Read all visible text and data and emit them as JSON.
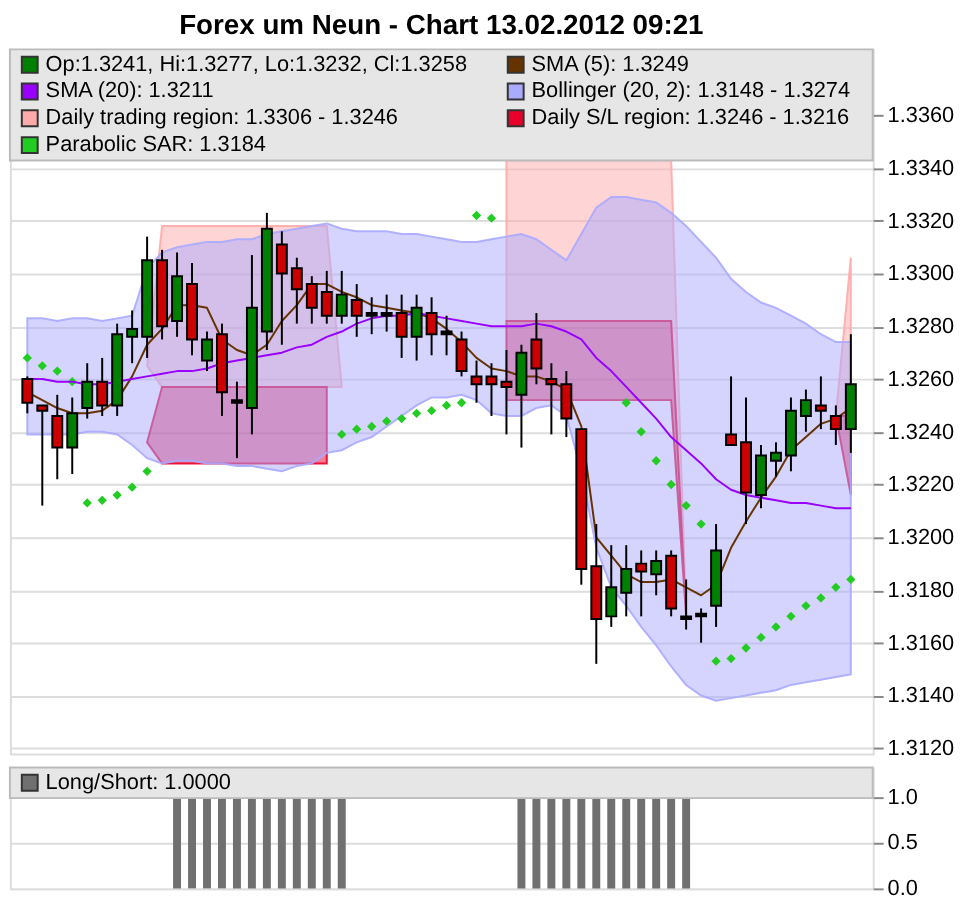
{
  "chart_data": [
    {
      "type": "candlestick",
      "title": "Forex um Neun - Chart 13.02.2012 09:21",
      "categories": [
        null,
        null,
        null,
        null,
        null,
        null,
        null,
        null,
        null,
        null,
        null,
        null,
        null,
        null,
        null,
        null,
        null,
        null,
        null,
        null,
        null,
        null,
        null,
        null,
        null,
        null,
        null,
        null,
        null,
        null,
        null,
        null,
        null,
        null,
        null,
        null,
        null,
        null,
        null,
        null,
        null,
        null,
        null,
        null,
        null,
        null,
        null,
        null,
        null,
        null,
        null,
        null,
        null,
        null,
        null,
        null
      ],
      "series": [
        {
          "name": "Op:1.3241, Hi:1.3277, Lo:1.3232, Cl:1.3258",
          "type": "candlestick",
          "color": "#008000",
          "ohlc": [
            [
              1.326,
              1.3261,
              1.3247,
              1.3251
            ],
            [
              1.325,
              1.325,
              1.3212,
              1.3248
            ],
            [
              1.3246,
              1.3254,
              1.3222,
              1.3234
            ],
            [
              1.3234,
              1.3253,
              1.3224,
              1.3247
            ],
            [
              1.3249,
              1.3266,
              1.3245,
              1.3259
            ],
            [
              1.3259,
              1.3268,
              1.3246,
              1.325
            ],
            [
              1.325,
              1.3281,
              1.3246,
              1.3277
            ],
            [
              1.3276,
              1.3286,
              1.3266,
              1.3279
            ],
            [
              1.3276,
              1.3314,
              1.3268,
              1.3305
            ],
            [
              1.3305,
              1.3309,
              1.3275,
              1.328
            ],
            [
              1.3282,
              1.3308,
              1.3276,
              1.3299
            ],
            [
              1.3296,
              1.3304,
              1.3269,
              1.3275
            ],
            [
              1.3267,
              1.3278,
              1.3263,
              1.3275
            ],
            [
              1.3277,
              1.3281,
              1.3246,
              1.3255
            ],
            [
              1.3252,
              1.3259,
              1.323,
              1.3251
            ],
            [
              1.3249,
              1.3307,
              1.3239,
              1.3287
            ],
            [
              1.3278,
              1.3323,
              1.3271,
              1.3317
            ],
            [
              1.3311,
              1.3316,
              1.3273,
              1.33
            ],
            [
              1.3302,
              1.3306,
              1.3281,
              1.3294
            ],
            [
              1.3296,
              1.3299,
              1.3281,
              1.3287
            ],
            [
              1.3293,
              1.3301,
              1.3281,
              1.3284
            ],
            [
              1.3284,
              1.3301,
              1.3281,
              1.3292
            ],
            [
              1.329,
              1.3296,
              1.3276,
              1.3284
            ],
            [
              1.3285,
              1.3291,
              1.3277,
              1.3284
            ],
            [
              1.3285,
              1.3292,
              1.3278,
              1.3284
            ],
            [
              1.3285,
              1.3292,
              1.3268,
              1.3276
            ],
            [
              1.3276,
              1.3292,
              1.3267,
              1.3287
            ],
            [
              1.3285,
              1.3291,
              1.3269,
              1.3277
            ],
            [
              1.3278,
              1.3284,
              1.3269,
              1.3277
            ],
            [
              1.3275,
              1.3278,
              1.3261,
              1.3263
            ],
            [
              1.3261,
              1.3267,
              1.3251,
              1.3258
            ],
            [
              1.3261,
              1.3266,
              1.3246,
              1.3258
            ],
            [
              1.3259,
              1.3271,
              1.3239,
              1.3257
            ],
            [
              1.3254,
              1.3273,
              1.3234,
              1.327
            ],
            [
              1.3275,
              1.3285,
              1.3258,
              1.3264
            ],
            [
              1.326,
              1.3266,
              1.3239,
              1.3258
            ],
            [
              1.3258,
              1.3263,
              1.3238,
              1.3245
            ],
            [
              1.3241,
              1.3241,
              1.3182,
              1.3188
            ],
            [
              1.3189,
              1.3205,
              1.3152,
              1.3169
            ],
            [
              1.317,
              1.3197,
              1.3166,
              1.3181
            ],
            [
              1.3179,
              1.3197,
              1.317,
              1.3188
            ],
            [
              1.319,
              1.3195,
              1.317,
              1.3187
            ],
            [
              1.3186,
              1.3195,
              1.3178,
              1.3191
            ],
            [
              1.3193,
              1.3195,
              1.317,
              1.3173
            ],
            [
              1.317,
              1.3184,
              1.3165,
              1.3169
            ],
            [
              1.3171,
              1.3173,
              1.316,
              1.317
            ],
            [
              1.3174,
              1.3205,
              1.3166,
              1.3195
            ],
            [
              1.3239,
              1.3261,
              1.3235,
              1.3235
            ],
            [
              1.3236,
              1.3253,
              1.3205,
              1.3217
            ],
            [
              1.3216,
              1.3235,
              1.3211,
              1.3231
            ],
            [
              1.3229,
              1.3236,
              1.3223,
              1.3232
            ],
            [
              1.3231,
              1.3253,
              1.3225,
              1.3248
            ],
            [
              1.3246,
              1.3256,
              1.324,
              1.3252
            ],
            [
              1.325,
              1.3261,
              1.3241,
              1.3248
            ],
            [
              1.3246,
              1.325,
              1.3235,
              1.3241
            ],
            [
              1.3241,
              1.3277,
              1.3232,
              1.3258
            ]
          ],
          "colors": [
            "#cc0000",
            "#cc0000",
            "#cc0000",
            "#008000",
            "#008000",
            "#cc0000",
            "#008000",
            "#008000",
            "#008000",
            "#cc0000",
            "#008000",
            "#cc0000",
            "#008000",
            "#cc0000",
            "#000000",
            "#008000",
            "#008000",
            "#cc0000",
            "#cc0000",
            "#cc0000",
            "#cc0000",
            "#008000",
            "#cc0000",
            "#000000",
            "#000000",
            "#cc0000",
            "#008000",
            "#cc0000",
            "#000000",
            "#cc0000",
            "#cc0000",
            "#cc0000",
            "#cc0000",
            "#008000",
            "#cc0000",
            "#cc0000",
            "#cc0000",
            "#cc0000",
            "#cc0000",
            "#008000",
            "#008000",
            "#cc0000",
            "#008000",
            "#cc0000",
            "#000000",
            "#000000",
            "#008000",
            "#cc0000",
            "#cc0000",
            "#008000",
            "#008000",
            "#008000",
            "#008000",
            "#cc0000",
            "#cc0000",
            "#008000"
          ]
        },
        {
          "name": "SMA (5): 1.3249",
          "type": "line",
          "color": "#663300",
          "values": [
            1.3255,
            1.3252,
            1.3249,
            1.3247,
            1.3247,
            1.3248,
            1.3252,
            1.3261,
            1.3273,
            1.3279,
            1.3288,
            1.3288,
            1.3287,
            1.3275,
            1.3271,
            1.3269,
            1.3273,
            1.3282,
            1.3288,
            1.3296,
            1.3296,
            1.3293,
            1.3291,
            1.3288,
            1.3287,
            1.3286,
            1.3285,
            1.3283,
            1.3279,
            1.3274,
            1.3268,
            1.3264,
            1.3263,
            1.3261,
            1.3261,
            1.3259,
            1.3256,
            1.3242,
            1.32,
            1.3193,
            1.3186,
            1.3183,
            1.3183,
            1.3184,
            1.3181,
            1.3178,
            1.3182,
            1.3196,
            1.3206,
            1.3215,
            1.3223,
            1.3233,
            1.3238,
            1.3243,
            1.3245,
            1.3249
          ]
        },
        {
          "name": "SMA (20): 1.3211",
          "type": "line",
          "color": "#9900ff",
          "values": [
            1.326,
            1.326,
            1.3259,
            1.3259,
            1.3258,
            1.3258,
            1.3259,
            1.326,
            1.3261,
            1.3262,
            1.3263,
            1.3263,
            1.3264,
            1.3266,
            1.3267,
            1.3268,
            1.3269,
            1.327,
            1.3272,
            1.3273,
            1.3276,
            1.3278,
            1.3281,
            1.3283,
            1.3284,
            1.3284,
            1.3285,
            1.3284,
            1.3283,
            1.3282,
            1.3281,
            1.328,
            1.328,
            1.328,
            1.3281,
            1.328,
            1.3278,
            1.3275,
            1.3268,
            1.3263,
            1.3257,
            1.3251,
            1.3245,
            1.3238,
            1.3233,
            1.3228,
            1.3222,
            1.3218,
            1.3216,
            1.3215,
            1.3214,
            1.3213,
            1.3213,
            1.3212,
            1.3211,
            1.3211
          ]
        },
        {
          "name": "Bollinger (20, 2): 1.3148 - 1.3274",
          "type": "area",
          "color": "#aaaaff",
          "values": [
            null,
            null,
            null,
            null,
            null,
            null,
            null,
            null,
            null,
            null,
            null,
            null,
            null,
            null,
            null,
            null,
            null,
            null,
            null,
            null,
            null,
            null,
            null,
            null,
            null,
            null,
            null,
            null,
            null,
            null,
            null,
            null,
            null,
            null,
            null,
            null,
            null,
            null,
            null,
            null,
            null,
            null,
            null,
            null,
            null,
            null,
            null,
            null,
            null,
            null,
            null,
            null,
            null,
            null,
            null,
            null
          ],
          "upper": [
            1.3283,
            1.3283,
            1.3282,
            1.3283,
            1.3283,
            1.3282,
            1.3283,
            1.3284,
            1.3302,
            1.3308,
            1.331,
            1.3311,
            1.3312,
            1.3312,
            1.3313,
            1.3313,
            1.3315,
            1.3316,
            1.3317,
            1.3318,
            1.3319,
            1.3317,
            1.3316,
            1.3316,
            1.3316,
            1.3315,
            1.3315,
            1.3314,
            1.3313,
            1.3312,
            1.3312,
            1.3313,
            1.3314,
            1.3315,
            1.3313,
            1.3309,
            1.3305,
            1.3315,
            1.3325,
            1.3329,
            1.3329,
            1.3328,
            1.3327,
            1.3323,
            1.3318,
            1.3312,
            1.3306,
            1.3298,
            1.3293,
            1.3289,
            1.3287,
            1.3284,
            1.3281,
            1.3277,
            1.3274,
            1.3274
          ],
          "lower": [
            1.3239,
            1.3239,
            1.3239,
            1.3239,
            1.324,
            1.324,
            1.3239,
            1.3235,
            1.323,
            1.3228,
            1.3229,
            1.3229,
            1.3228,
            1.3228,
            1.3227,
            1.3227,
            1.3226,
            1.3225,
            1.3227,
            1.3228,
            1.3232,
            1.3233,
            1.3236,
            1.3238,
            1.3242,
            1.3246,
            1.325,
            1.3253,
            1.3253,
            1.3254,
            1.3252,
            1.3247,
            1.3246,
            1.3246,
            1.3249,
            1.325,
            1.3246,
            1.3225,
            1.3196,
            1.3181,
            1.3174,
            1.3166,
            1.3159,
            1.3151,
            1.3144,
            1.314,
            1.3138,
            1.3139,
            1.314,
            1.3141,
            1.3142,
            1.3144,
            1.3145,
            1.3146,
            1.3147,
            1.3148
          ]
        },
        {
          "name": "Daily trading region: 1.3306 - 1.3246",
          "type": "area",
          "color": "#ffaaaa",
          "values": [
            null,
            null,
            null,
            null,
            null,
            null,
            null,
            null,
            null,
            null,
            null,
            null,
            null,
            null,
            null,
            null,
            null,
            null,
            null,
            null,
            null,
            null,
            null,
            null,
            null,
            null,
            null,
            null,
            null,
            null,
            null,
            null,
            null,
            null,
            null,
            null,
            null,
            null,
            null,
            null,
            null,
            null,
            null,
            null,
            null,
            null,
            null,
            null,
            null,
            null,
            null,
            null,
            null,
            null,
            null,
            null
          ],
          "upper": [
            null,
            null,
            null,
            null,
            null,
            null,
            null,
            null,
            1.3265,
            1.3318,
            1.3318,
            1.3318,
            1.3318,
            1.3318,
            1.3318,
            1.3318,
            1.3318,
            1.3318,
            1.3318,
            1.3318,
            1.3318,
            1.3257,
            null,
            null,
            null,
            null,
            null,
            null,
            null,
            null,
            null,
            null,
            1.3343,
            1.3343,
            1.3343,
            1.3343,
            1.3343,
            1.3343,
            1.3343,
            1.3343,
            1.3343,
            1.3343,
            1.3343,
            1.3343,
            1.317,
            null,
            null,
            null,
            null,
            null,
            null,
            null,
            null,
            null,
            1.3246,
            1.3306
          ],
          "lower": [
            null,
            null,
            null,
            null,
            null,
            null,
            null,
            null,
            1.3265,
            1.3257,
            1.3257,
            1.3257,
            1.3257,
            1.3257,
            1.3257,
            1.3257,
            1.3257,
            1.3257,
            1.3257,
            1.3257,
            1.3257,
            1.3257,
            null,
            null,
            null,
            null,
            null,
            null,
            null,
            null,
            null,
            null,
            1.3282,
            1.3282,
            1.3282,
            1.3282,
            1.3282,
            1.3282,
            1.3282,
            1.3282,
            1.3282,
            1.3282,
            1.3282,
            1.3282,
            1.317,
            null,
            null,
            null,
            null,
            null,
            null,
            null,
            null,
            null,
            1.3246,
            1.3246
          ]
        },
        {
          "name": "Daily S/L region: 1.3246 - 1.3216",
          "type": "area",
          "color": "#e8002a",
          "values": [
            null,
            null,
            null,
            null,
            null,
            null,
            null,
            null,
            null,
            null,
            null,
            null,
            null,
            null,
            null,
            null,
            null,
            null,
            null,
            null,
            null,
            null,
            null,
            null,
            null,
            null,
            null,
            null,
            null,
            null,
            null,
            null,
            null,
            null,
            null,
            null,
            null,
            null,
            null,
            null,
            null,
            null,
            null,
            null,
            null,
            null,
            null,
            null,
            null,
            null,
            null,
            null,
            null,
            null,
            null,
            null
          ],
          "upper": [
            null,
            null,
            null,
            null,
            null,
            null,
            null,
            null,
            1.3236,
            1.3257,
            1.3257,
            1.3257,
            1.3257,
            1.3257,
            1.3257,
            1.3257,
            1.3257,
            1.3257,
            1.3257,
            1.3257,
            1.3257,
            null,
            null,
            null,
            null,
            null,
            null,
            null,
            null,
            null,
            null,
            null,
            1.3282,
            1.3282,
            1.3282,
            1.3282,
            1.3282,
            1.3282,
            1.3282,
            1.3282,
            1.3282,
            1.3282,
            1.3282,
            1.3282,
            1.317,
            null,
            null,
            null,
            null,
            null,
            null,
            null,
            null,
            null,
            1.3246,
            1.3246
          ],
          "lower": [
            null,
            null,
            null,
            null,
            null,
            null,
            null,
            null,
            1.3236,
            1.3228,
            1.3228,
            1.3228,
            1.3228,
            1.3228,
            1.3228,
            1.3228,
            1.3228,
            1.3228,
            1.3228,
            1.3228,
            1.3228,
            null,
            null,
            null,
            null,
            null,
            null,
            null,
            null,
            null,
            null,
            null,
            1.3252,
            1.3252,
            1.3252,
            1.3252,
            1.3252,
            1.3252,
            1.3252,
            1.3252,
            1.3252,
            1.3252,
            1.3252,
            1.3252,
            1.317,
            null,
            null,
            null,
            null,
            null,
            null,
            null,
            null,
            null,
            1.3246,
            1.3216
          ]
        },
        {
          "name": "Parabolic SAR: 1.3184",
          "type": "scatter",
          "marker": "diamond",
          "color": "#22cc22",
          "values": [
            1.3268,
            1.3265,
            1.3263,
            1.3259,
            1.3213,
            1.3214,
            1.3216,
            1.3219,
            1.3225,
            null,
            null,
            null,
            null,
            null,
            null,
            null,
            null,
            null,
            null,
            null,
            null,
            1.3239,
            1.3241,
            1.3242,
            1.3244,
            1.3245,
            1.3247,
            1.3248,
            1.325,
            1.3251,
            1.3322,
            1.3321,
            null,
            null,
            null,
            null,
            null,
            null,
            null,
            null,
            1.3251,
            1.324,
            1.3229,
            1.322,
            1.3212,
            1.3205,
            1.3153,
            1.3154,
            1.3158,
            1.3162,
            1.3166,
            1.317,
            1.3174,
            1.3177,
            1.3181,
            1.3184
          ]
        }
      ],
      "ylim": [
        1.3118,
        1.3385
      ],
      "yticks": [
        {
          "value": 1.312,
          "label": "1.3120"
        },
        {
          "value": 1.314,
          "label": "1.3140"
        },
        {
          "value": 1.316,
          "label": "1.3160"
        },
        {
          "value": 1.318,
          "label": "1.3180"
        },
        {
          "value": 1.32,
          "label": "1.3200"
        },
        {
          "value": 1.322,
          "label": "1.3220"
        },
        {
          "value": 1.324,
          "label": "1.3240"
        },
        {
          "value": 1.326,
          "label": "1.3260"
        },
        {
          "value": 1.328,
          "label": "1.3280"
        },
        {
          "value": 1.33,
          "label": "1.3300"
        },
        {
          "value": 1.332,
          "label": "1.3320"
        },
        {
          "value": 1.334,
          "label": "1.3340"
        },
        {
          "value": 1.336,
          "label": "1.3360"
        }
      ],
      "grid": "y",
      "legend": "top",
      "tick_labels": "y"
    },
    {
      "type": "bar",
      "categories": [
        null,
        null,
        null,
        null,
        null,
        null,
        null,
        null,
        null,
        null,
        null,
        null,
        null,
        null,
        null,
        null,
        null,
        null,
        null,
        null,
        null,
        null,
        null,
        null,
        null,
        null,
        null,
        null,
        null,
        null,
        null,
        null,
        null,
        null,
        null,
        null,
        null,
        null,
        null,
        null,
        null,
        null,
        null,
        null,
        null,
        null,
        null,
        null,
        null,
        null,
        null,
        null,
        null,
        null,
        null,
        null
      ],
      "series": [
        {
          "name": "Long/Short: 1.0000",
          "color": "#707070",
          "values": [
            0,
            0,
            0,
            0,
            0,
            0,
            0,
            0,
            0,
            0,
            1,
            1,
            1,
            1,
            1,
            1,
            1,
            1,
            1,
            1,
            1,
            1,
            0,
            0,
            0,
            0,
            0,
            0,
            0,
            0,
            0,
            0,
            0,
            1,
            1,
            1,
            1,
            1,
            1,
            1,
            1,
            1,
            1,
            1,
            1,
            0,
            0,
            0,
            0,
            0,
            0,
            0,
            0,
            0,
            0,
            0
          ]
        }
      ],
      "ylim": [
        0,
        1.32
      ],
      "yticks": [
        {
          "value": 0,
          "label": "0.0"
        },
        0.5,
        {
          "value": 1,
          "label": "1.0"
        }
      ],
      "grid": "y",
      "legend": "top",
      "tick_labels": "y"
    }
  ]
}
